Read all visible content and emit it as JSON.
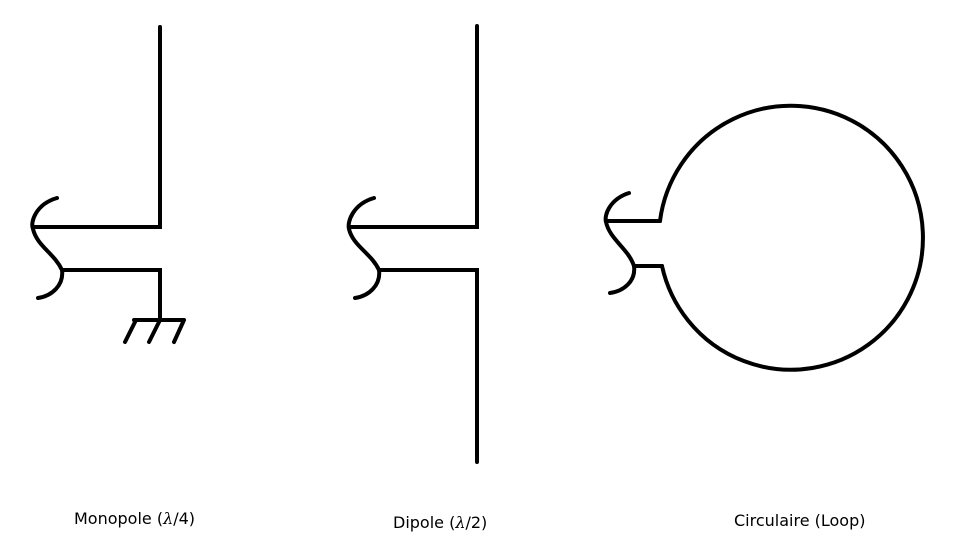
{
  "diagram": {
    "antennas": [
      {
        "name": "Monopole",
        "caption_prefix": "Monopole (",
        "caption_symbol": "λ",
        "caption_suffix": "/4)"
      },
      {
        "name": "Dipole",
        "caption_prefix": "Dipole (",
        "caption_symbol": "λ",
        "caption_suffix": "/2)"
      },
      {
        "name": "Circulaire",
        "caption_prefix": "Circulaire (Loop)",
        "caption_symbol": "",
        "caption_suffix": ""
      }
    ],
    "stroke_color": "#000000"
  }
}
